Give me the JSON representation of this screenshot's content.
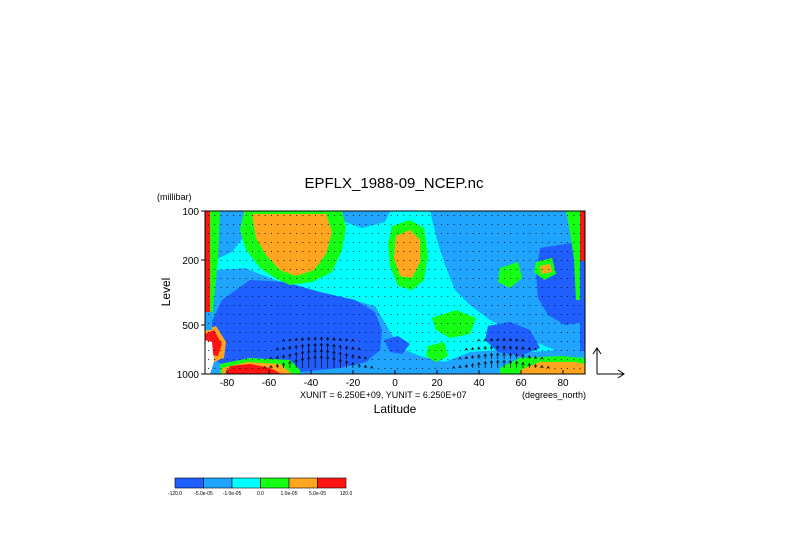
{
  "chart_data": {
    "type": "contour",
    "title": "EPFLX_1988-09_NCEP.nc",
    "ylabel": "Level",
    "yunit": "(millibar)",
    "xlabel": "Latitude",
    "xunit": "(degrees_north)",
    "vector_scale": "XUNIT = 6.250E+09, YUNIT = 6.250E+07",
    "xlim": [
      -90,
      90
    ],
    "ylim": [
      1000,
      100
    ],
    "y_scale": "log",
    "x_ticks": [
      -80,
      -60,
      -40,
      -20,
      0,
      20,
      40,
      60,
      80
    ],
    "x_tick_labels": [
      "-80",
      "-60",
      "-40",
      "-20",
      "0",
      "20",
      "40",
      "60",
      "80"
    ],
    "y_ticks": [
      100,
      200,
      500,
      1000
    ],
    "y_tick_labels": [
      "100",
      "200",
      "500",
      "1000"
    ],
    "colorbar": {
      "colors": [
        "#1f5fff",
        "#1fa5ff",
        "#00ffff",
        "#14ff14",
        "#ffa51f",
        "#ff1414"
      ],
      "labels": [
        "-120.0",
        "-5.0e-05",
        "-1.0e-05",
        "0.0",
        "1.0e-05",
        "5.0e-05",
        "120.0"
      ]
    }
  }
}
